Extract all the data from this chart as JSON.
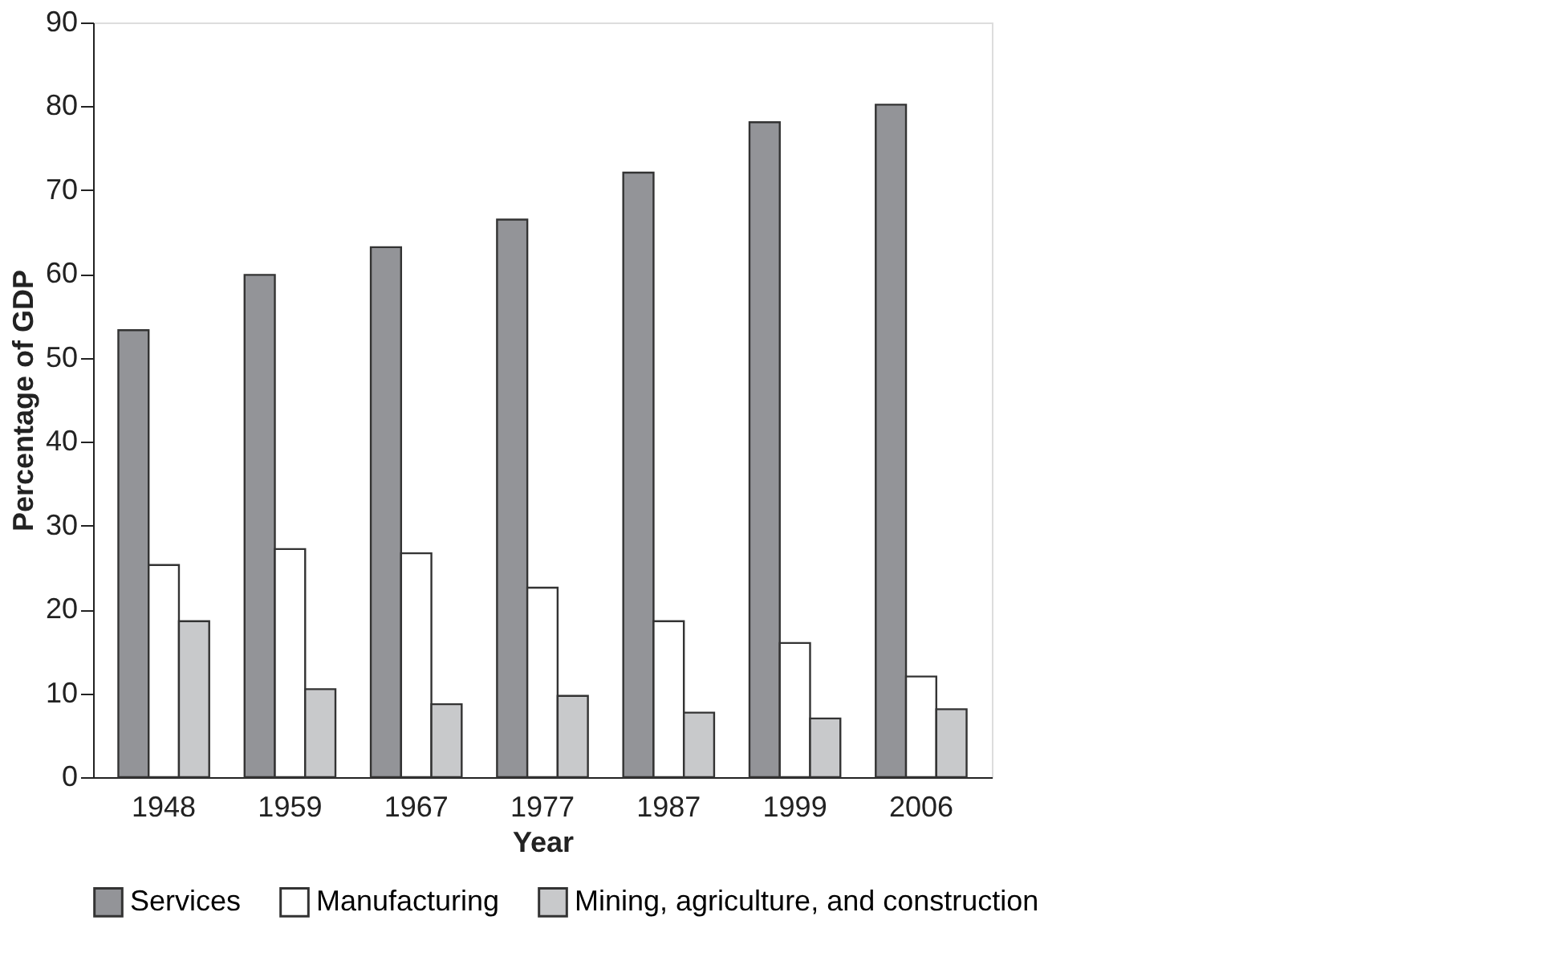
{
  "chart_data": {
    "type": "bar",
    "xlabel": "Year",
    "ylabel": "Percentage of GDP",
    "categories": [
      "1948",
      "1959",
      "1967",
      "1977",
      "1987",
      "1999",
      "2006"
    ],
    "series": [
      {
        "name": "Services",
        "color": "#939498",
        "values": [
          53.3,
          59.9,
          63.2,
          66.5,
          72.1,
          78.1,
          80.2
        ]
      },
      {
        "name": "Manufacturing",
        "color": "#ffffff",
        "values": [
          25.3,
          27.2,
          26.7,
          22.6,
          18.6,
          16.0,
          12.0
        ]
      },
      {
        "name": "Mining, agriculture, and construction",
        "color": "#c8c9cb",
        "values": [
          18.6,
          10.5,
          8.7,
          9.7,
          7.7,
          7.0,
          8.1
        ]
      }
    ],
    "ylim": [
      0,
      90
    ],
    "yticks": [
      0,
      10,
      20,
      30,
      40,
      50,
      60,
      70,
      80,
      90
    ],
    "grid": false,
    "legend": "bottom left"
  }
}
